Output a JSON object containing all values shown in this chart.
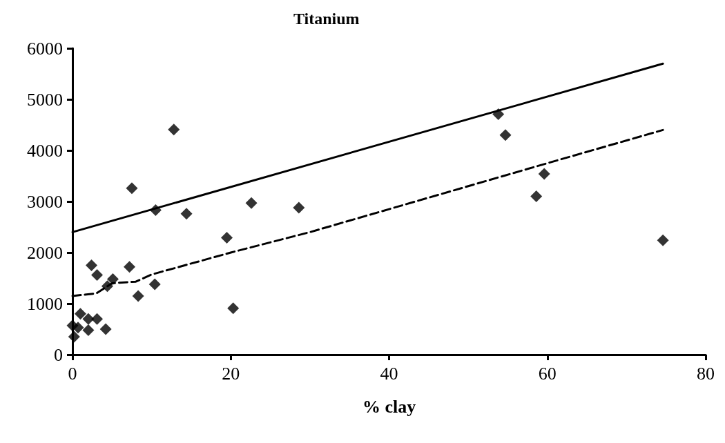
{
  "chart_data": {
    "type": "scatter",
    "title": "Titanium",
    "xlabel": "% clay",
    "xlim": [
      0,
      80
    ],
    "xticks": [
      0,
      20,
      40,
      60,
      80
    ],
    "ylim": [
      0,
      6000
    ],
    "yticks": [
      0,
      1000,
      2000,
      3000,
      4000,
      5000,
      6000
    ],
    "grid": false,
    "marker": "diamond",
    "series": [
      {
        "color": "#000000",
        "x": [
          0.2,
          0,
          1,
          0.7,
          2,
          2,
          3.1,
          4.2,
          2.4,
          3.1,
          4.4,
          5.1,
          7.5,
          7.2,
          8.3,
          10.5,
          10.4,
          12.8,
          14.4,
          19.5,
          20.3,
          22.6,
          28.6,
          53.8,
          54.7,
          58.6,
          59.6,
          74.6
        ],
        "values": [
          350,
          570,
          800,
          530,
          480,
          700,
          700,
          500,
          1750,
          1560,
          1340,
          1480,
          3260,
          1720,
          1150,
          2830,
          1380,
          4410,
          2760,
          2290,
          910,
          2970,
          2880,
          4710,
          4300,
          3100,
          3540,
          2240
        ]
      },
      {
        "type": "line",
        "color": "#000000",
        "marker": "none",
        "line_style": "solid",
        "x": [
          0,
          74.6
        ],
        "values": [
          2400,
          5700
        ]
      },
      {
        "type": "line",
        "color": "#000000",
        "marker": "none",
        "line_style": "dashed",
        "x": [
          0,
          3,
          5,
          8,
          10,
          20,
          30,
          40,
          50,
          60,
          74.6
        ],
        "values": [
          1150,
          1200,
          1400,
          1430,
          1570,
          2000,
          2400,
          2850,
          3300,
          3750,
          4400
        ]
      }
    ]
  }
}
